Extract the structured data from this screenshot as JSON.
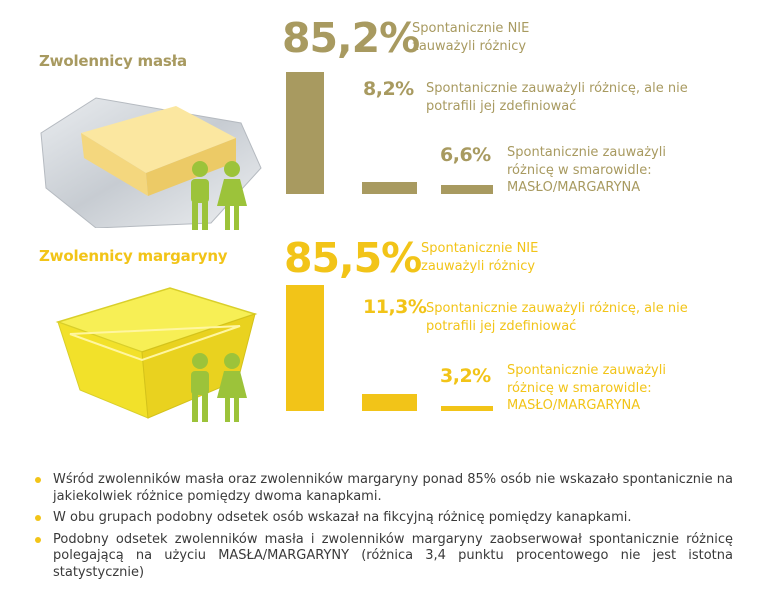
{
  "colors": {
    "butter": "#a89a60",
    "margarine": "#f2c418",
    "people": "#9cc33a",
    "text": "#3a3a3a"
  },
  "chart_data": [
    {
      "type": "bar",
      "title": "Zwolennicy masła",
      "categories": [
        "Spontanicznie NIE zauważyli różnicy",
        "Spontanicznie zauważyli różnicę, ale nie potrafili jej zdefiniować",
        "Spontanicznie zauważyli różnicę w smarowidle: MASŁO/MARGARYNA"
      ],
      "values": [
        85.2,
        8.2,
        6.6
      ],
      "value_labels": [
        "85,2%",
        "8,2%",
        "6,6%"
      ],
      "desc_lines": [
        [
          "Spontanicznie NIE",
          "zauważyli różnicy"
        ],
        [
          "Spontanicznie zauważyli różnicę, ale nie",
          "potrafili jej zdefiniować"
        ],
        [
          "Spontanicznie zauważyli",
          "różnicę w smarowidle:",
          "MASŁO/MARGARYNA"
        ]
      ],
      "ylim": [
        0,
        100
      ]
    },
    {
      "type": "bar",
      "title": "Zwolennicy margaryny",
      "categories": [
        "Spontanicznie NIE zauważyli różnicy",
        "Spontanicznie zauważyli różnicę, ale nie potrafili jej zdefiniować",
        "Spontanicznie zauważyli różnicę w smarowidle: MASŁO/MARGARYNA"
      ],
      "values": [
        85.5,
        11.3,
        3.2
      ],
      "value_labels": [
        "85,5%",
        "11,3%",
        "3,2%"
      ],
      "desc_lines": [
        [
          "Spontanicznie NIE",
          "zauważyli różnicy"
        ],
        [
          "Spontanicznie zauważyli różnicę, ale nie",
          "potrafili jej zdefiniować"
        ],
        [
          "Spontanicznie zauważyli",
          "różnicę w smarowidle:",
          "MASŁO/MARGARYNA"
        ]
      ],
      "ylim": [
        0,
        100
      ]
    }
  ],
  "bullets": [
    "Wśród zwolenników masła oraz zwolenników margaryny ponad 85% osób nie wskazało spontanicznie na jakiekolwiek różnice pomiędzy dwoma kanapkami.",
    "W obu grupach podobny odsetek osób wskazał na fikcyjną różnicę pomiędzy kanapkami.",
    "Podobny odsetek zwolenników masła i zwolenników margaryny zaobserwował spontanicznie różnicę polegającą na użyciu MASŁA/MARGARYNY (różnica 3,4 punktu procentowego nie jest istotna statystycznie)"
  ]
}
